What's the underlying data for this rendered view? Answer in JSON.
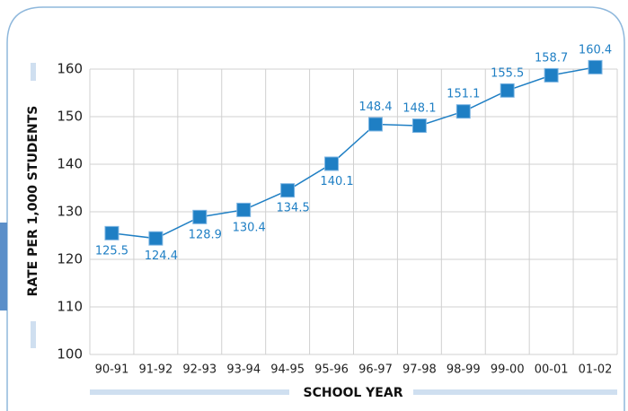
{
  "chart_data": {
    "type": "line",
    "x_label": "SCHOOL YEAR",
    "y_label": "RATE PER 1,000 STUDENTS",
    "categories": [
      "90-91",
      "91-92",
      "92-93",
      "93-94",
      "94-95",
      "95-96",
      "96-97",
      "97-98",
      "98-99",
      "99-00",
      "00-01",
      "01-02"
    ],
    "values": [
      125.5,
      124.4,
      128.9,
      130.4,
      134.5,
      140.1,
      148.4,
      148.1,
      151.1,
      155.5,
      158.7,
      160.4
    ],
    "color": "#1f7fc4",
    "ylim": [
      100,
      160
    ],
    "yticks": [
      100,
      110,
      120,
      130,
      140,
      150,
      160
    ],
    "grid": true
  }
}
